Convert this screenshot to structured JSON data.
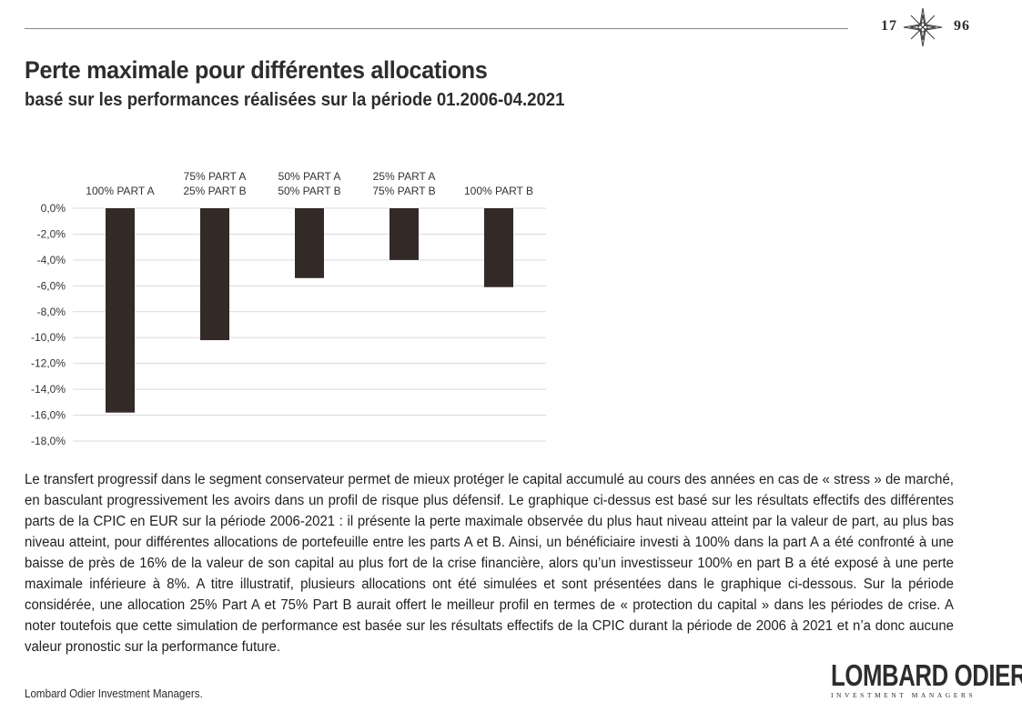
{
  "header": {
    "year_left": "17",
    "year_right": "96"
  },
  "title": "Perte maximale pour différentes allocations",
  "subtitle": "basé sur les performances réalisées sur la période 01.2006-04.2021",
  "chart_data": {
    "type": "bar",
    "categories": [
      [
        "100% PART A"
      ],
      [
        "75% PART A",
        "25% PART B"
      ],
      [
        "50% PART A",
        "50% PART B"
      ],
      [
        "25% PART A",
        "75% PART B"
      ],
      [
        "100% PART B"
      ]
    ],
    "values": [
      -15.8,
      -10.2,
      -5.4,
      -4.0,
      -6.1
    ],
    "y_ticks": [
      "0,0%",
      "-2,0%",
      "-4,0%",
      "-6,0%",
      "-8,0%",
      "-10,0%",
      "-12,0%",
      "-14,0%",
      "-16,0%",
      "-18,0%"
    ],
    "ylim": [
      -18,
      0
    ],
    "grid": true,
    "category_labels_position": "top",
    "bar_color": "#332a28",
    "grid_color": "#d9d9d9"
  },
  "body_text": "Le transfert progressif dans le segment conservateur permet de mieux protéger le capital accumulé au cours des années en cas de « stress » de marché, en basculant progressivement les avoirs dans un profil de risque plus défensif. Le graphique ci-dessus est basé sur les résultats effectifs des différentes parts de la CPIC en EUR sur la période 2006-2021 : il présente la perte maximale observée du plus haut niveau atteint par la valeur de part, au plus bas niveau atteint, pour différentes allocations de portefeuille entre les parts A et B. Ainsi, un bénéficiaire investi à 100% dans la part A a été confronté à une baisse de près de 16% de la valeur de son capital au plus fort de la crise financière, alors qu’un investisseur 100% en part B a été exposé à une perte maximale inférieure à 8%. A titre illustratif, plusieurs allocations ont été simulées et sont présentées dans le graphique ci-dessous. Sur la période considérée, une allocation 25% Part A et 75% Part B aurait offert le meilleur profil en termes de « protection du capital » dans les périodes de crise. A noter toutefois que cette simulation de performance est basée sur les résultats effectifs de la CPIC durant la période de 2006 à 2021 et n’a donc aucune valeur pronostic sur la performance future.",
  "footer": {
    "note": "Lombard Odier Investment Managers.",
    "logo_name": "LOMBARD ODIER",
    "logo_tagline": "INVESTMENT MANAGERS"
  }
}
